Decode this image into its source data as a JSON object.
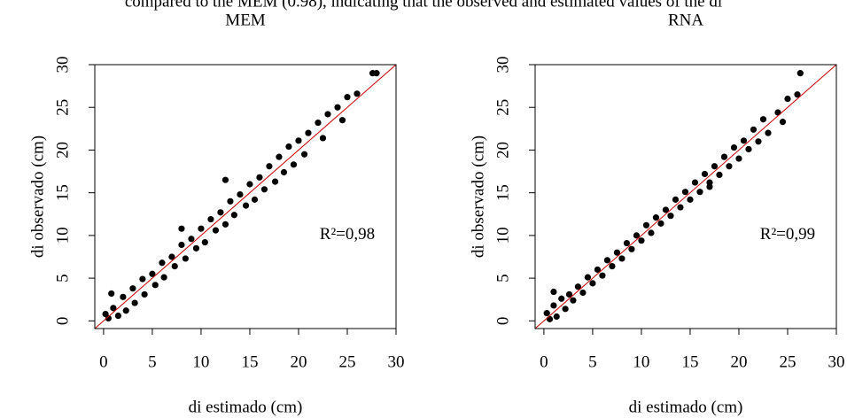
{
  "caption_fragment": "compared to the MEM (0.98), indicating that the observed and estimated values of the di",
  "chart_data": [
    {
      "type": "scatter",
      "title": "MEM",
      "xlabel": "di estimado (cm)",
      "ylabel": "di observado (cm)",
      "annotation": "R²=0,98",
      "color": "#000000",
      "identity_line_color": "#cc0000",
      "xlim": [
        -0.9,
        30
      ],
      "ylim": [
        -0.9,
        30
      ],
      "xticks": [
        0,
        5,
        10,
        15,
        20,
        25,
        30
      ],
      "yticks": [
        0,
        5,
        10,
        15,
        20,
        25,
        30
      ],
      "x": [
        0.2,
        0.5,
        0.8,
        1.0,
        1.5,
        2.0,
        2.3,
        3.0,
        3.2,
        4.0,
        4.2,
        5.0,
        5.3,
        6.0,
        6.2,
        7.0,
        7.3,
        8.0,
        8.4,
        9.0,
        9.5,
        10.0,
        10.4,
        11.0,
        11.5,
        12.0,
        12.5,
        13.0,
        13.4,
        14.0,
        14.6,
        15.0,
        15.5,
        16.0,
        16.5,
        17.0,
        17.6,
        18.0,
        18.5,
        19.0,
        19.5,
        20.0,
        20.6,
        21.0,
        22.0,
        22.5,
        23.0,
        24.0,
        24.5,
        25.0,
        26.0,
        27.6,
        28.0,
        12.5,
        8.0
      ],
      "values": [
        0.8,
        0.3,
        3.2,
        1.5,
        0.6,
        2.8,
        1.2,
        3.8,
        2.1,
        4.9,
        3.1,
        5.5,
        4.2,
        6.8,
        5.1,
        7.5,
        6.4,
        8.9,
        7.3,
        9.6,
        8.5,
        10.8,
        9.2,
        11.9,
        10.6,
        12.7,
        11.3,
        14.0,
        12.4,
        14.8,
        13.5,
        16.0,
        14.2,
        16.8,
        15.4,
        18.1,
        16.3,
        19.2,
        17.4,
        20.4,
        18.3,
        21.1,
        19.5,
        22.0,
        23.2,
        21.4,
        24.2,
        25.0,
        23.5,
        26.2,
        26.6,
        29.0,
        29.0,
        16.5,
        10.8
      ]
    },
    {
      "type": "scatter",
      "title": "RNA",
      "xlabel": "di estimado (cm)",
      "ylabel": "di observado (cm)",
      "annotation": "R²=0,99",
      "color": "#000000",
      "identity_line_color": "#cc0000",
      "xlim": [
        -0.9,
        30
      ],
      "ylim": [
        -0.9,
        30
      ],
      "xticks": [
        0,
        5,
        10,
        15,
        20,
        25,
        30
      ],
      "yticks": [
        0,
        5,
        10,
        15,
        20,
        25,
        30
      ],
      "x": [
        0.3,
        0.6,
        1.0,
        1.3,
        1.8,
        2.2,
        2.6,
        3.0,
        3.5,
        4.0,
        4.5,
        5.0,
        5.5,
        6.0,
        6.5,
        7.0,
        7.5,
        8.0,
        8.5,
        9.0,
        9.5,
        10.0,
        10.5,
        11.0,
        11.5,
        12.0,
        12.5,
        13.0,
        13.5,
        14.0,
        14.5,
        15.0,
        15.5,
        16.0,
        16.5,
        17.0,
        17.5,
        18.0,
        18.5,
        19.0,
        19.5,
        20.0,
        20.5,
        21.0,
        21.5,
        22.0,
        22.5,
        23.0,
        24.0,
        24.5,
        25.0,
        26.0,
        26.3,
        17.0,
        1.0
      ],
      "values": [
        0.9,
        0.2,
        1.8,
        0.5,
        2.6,
        1.4,
        3.1,
        2.4,
        4.0,
        3.3,
        5.1,
        4.4,
        6.0,
        5.3,
        7.1,
        6.4,
        8.0,
        7.3,
        9.1,
        8.4,
        10.0,
        9.4,
        11.2,
        10.3,
        12.1,
        11.4,
        13.0,
        12.3,
        14.2,
        13.3,
        15.1,
        14.2,
        16.2,
        15.1,
        17.2,
        16.2,
        18.1,
        17.1,
        19.2,
        18.1,
        20.3,
        19.0,
        21.1,
        20.1,
        22.4,
        21.0,
        23.6,
        22.0,
        24.4,
        23.3,
        26.0,
        26.5,
        29.0,
        15.7,
        3.4
      ]
    }
  ]
}
